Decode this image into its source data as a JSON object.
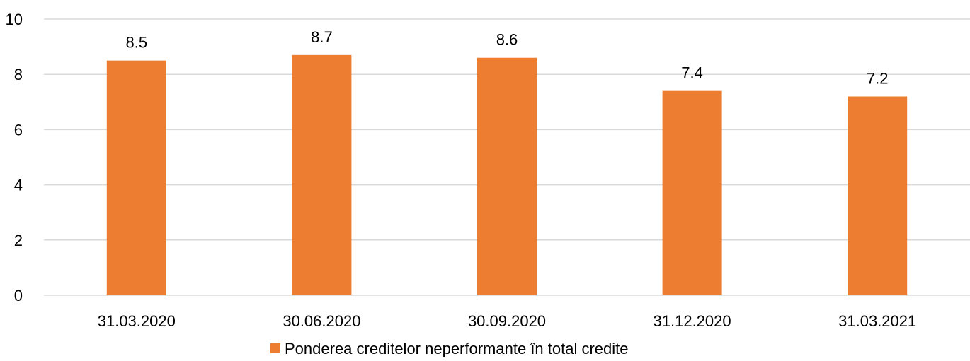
{
  "chart_data": {
    "type": "bar",
    "categories": [
      "31.03.2020",
      "30.06.2020",
      "30.09.2020",
      "31.12.2020",
      "31.03.2021"
    ],
    "series": [
      {
        "name": "Ponderea creditelor neperformante în total credite",
        "values": [
          8.5,
          8.7,
          8.6,
          7.4,
          7.2
        ],
        "color": "#ED7D31"
      }
    ],
    "ylim": [
      0,
      10
    ],
    "yticks": [
      "0",
      "2",
      "4",
      "6",
      "8",
      "10"
    ],
    "data_labels": [
      "8.5",
      "8.7",
      "8.6",
      "7.4",
      "7.2"
    ],
    "grid": true,
    "legend": "bottom",
    "gridline_color": "#D9D9D9"
  }
}
